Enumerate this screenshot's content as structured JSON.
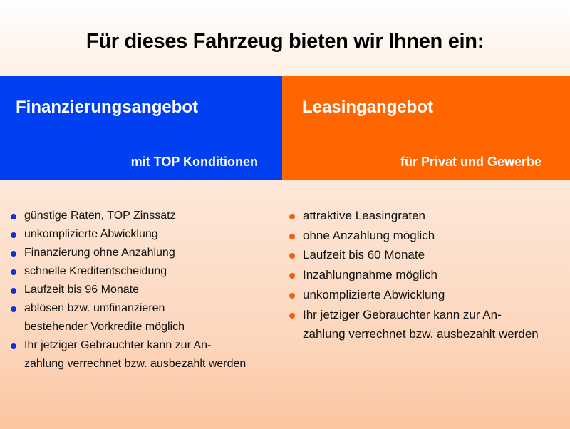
{
  "title": "Für dieses Fahrzeug bieten wir Ihnen ein:",
  "colors": {
    "financing": "#0040f0",
    "leasing": "#ff6600"
  },
  "financing": {
    "heading": "Finanzierungsangebot",
    "subheading": "mit TOP Konditionen",
    "items": [
      "günstige Raten, TOP Zinssatz",
      "unkomplizierte Abwicklung",
      "Finanzierung ohne Anzahlung",
      "schnelle Kreditentscheidung",
      "Laufzeit bis 96 Monate",
      "ablösen bzw. umfinanzieren bestehender Vorkredite möglich",
      "Ihr jetziger Gebrauchter kann zur An-zahlung verrechnet bzw. ausbezahlt werden"
    ]
  },
  "leasing": {
    "heading": "Leasingangebot",
    "subheading": "für Privat und Gewerbe",
    "items": [
      "attraktive Leasingraten",
      "ohne Anzahlung möglich",
      "Laufzeit bis 60 Monate",
      "Inzahlungnahme möglich",
      "unkomplizierte Abwicklung",
      "Ihr jetziger Gebrauchter kann zur An-zahlung verrechnet bzw. ausbezahlt werden"
    ]
  }
}
